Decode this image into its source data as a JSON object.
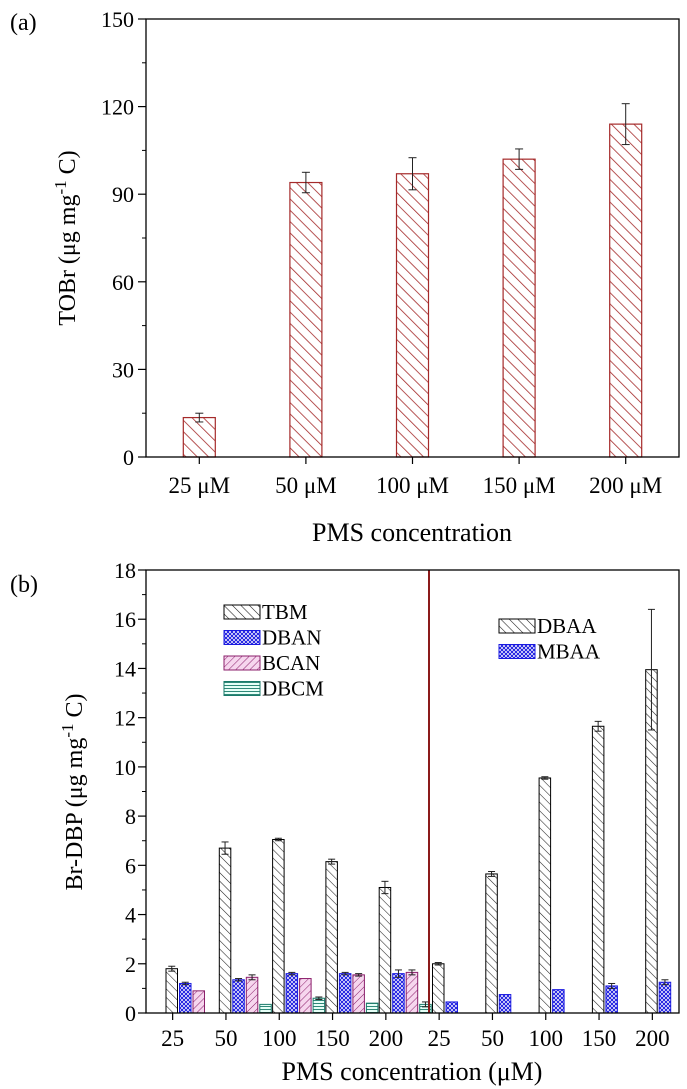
{
  "chart_data": [
    {
      "panel_label": "(a)",
      "type": "bar",
      "categories": [
        "25 μM",
        "50 μM",
        "100 μM",
        "150 μM",
        "200 μM"
      ],
      "values": [
        13.5,
        94,
        97,
        102,
        114
      ],
      "errors": [
        1.5,
        3.5,
        5.5,
        3.5,
        7
      ],
      "xlabel": "PMS concentration",
      "ylabel": "TOBr (μg mg",
      "ylabel_sup": "-1",
      "ylabel_end": " C)",
      "ylim": [
        0,
        150
      ],
      "yticks": [
        0,
        30,
        60,
        90,
        120,
        150
      ],
      "bar_color": "#a52a2a"
    },
    {
      "panel_label": "(b)",
      "type": "bar",
      "categories": [
        "25",
        "50",
        "100",
        "150",
        "200",
        "25",
        "50",
        "100",
        "150",
        "200"
      ],
      "xlabel": "PMS concentration (μM)",
      "ylabel": "Br-DBP (μg mg",
      "ylabel_sup": "-1",
      "ylabel_end": " C)",
      "ylim": [
        0,
        18
      ],
      "yticks": [
        0,
        2,
        4,
        6,
        8,
        10,
        12,
        14,
        16,
        18
      ],
      "divider_color": "#8b1a1a",
      "groups": [
        {
          "series": [
            {
              "name": "TBM",
              "pattern": "diag",
              "values": [
                1.8,
                6.7,
                7.05,
                6.15,
                5.1
              ],
              "errors": [
                0.1,
                0.25,
                0.05,
                0.1,
                0.25
              ]
            },
            {
              "name": "DBAN",
              "pattern": "cross",
              "values": [
                1.2,
                1.35,
                1.6,
                1.6,
                1.6
              ],
              "errors": [
                0.05,
                0.05,
                0.05,
                0.05,
                0.15
              ]
            },
            {
              "name": "BCAN",
              "pattern": "pinkdiag",
              "values": [
                0.9,
                1.45,
                1.4,
                1.55,
                1.65
              ],
              "errors": [
                0,
                0.1,
                0,
                0.05,
                0.1
              ]
            },
            {
              "name": "DBCM",
              "pattern": "hstripe",
              "values": [
                0,
                0.35,
                0.6,
                0.4,
                0.35
              ],
              "errors": [
                0,
                0,
                0.05,
                0,
                0.1
              ]
            }
          ]
        },
        {
          "series": [
            {
              "name": "DBAA",
              "pattern": "diag",
              "values": [
                2.0,
                5.65,
                9.55,
                11.65,
                13.95
              ],
              "errors": [
                0.05,
                0.1,
                0.05,
                0.2,
                2.45
              ]
            },
            {
              "name": "MBAA",
              "pattern": "cross",
              "values": [
                0.45,
                0.75,
                0.95,
                1.1,
                1.25
              ],
              "errors": [
                0,
                0,
                0,
                0.1,
                0.1
              ]
            }
          ]
        }
      ]
    }
  ]
}
